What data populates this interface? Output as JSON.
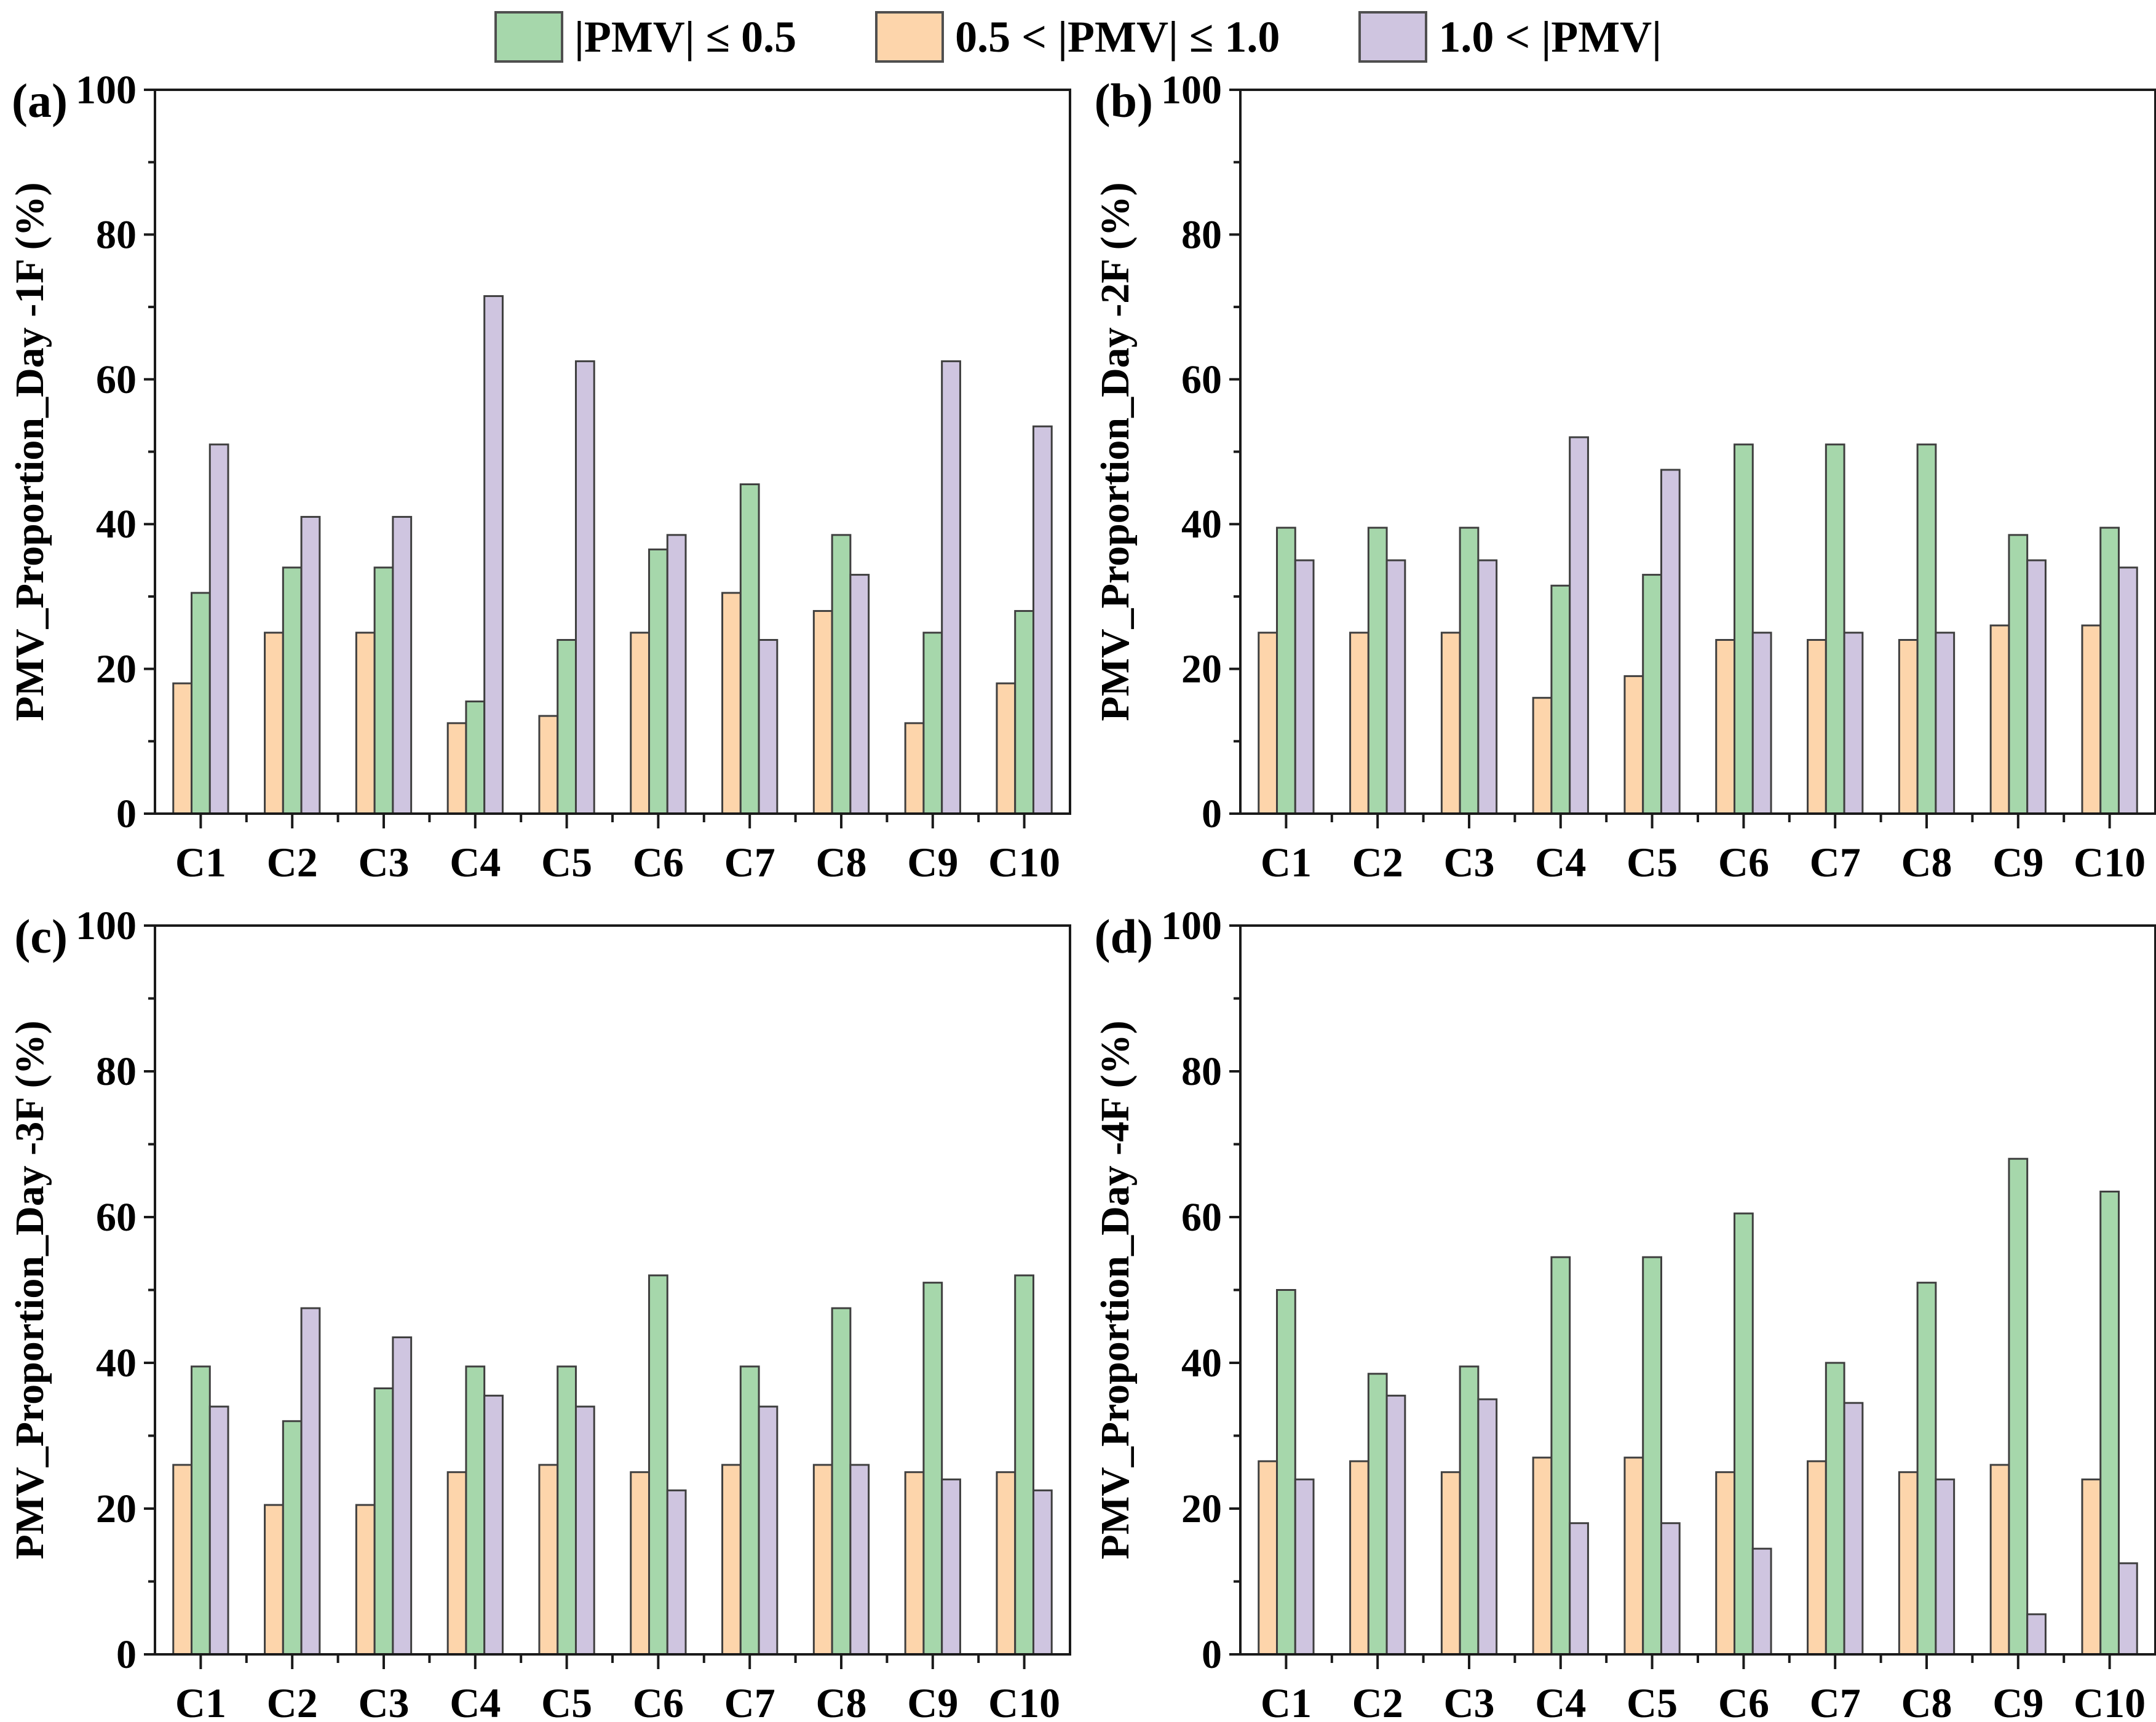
{
  "page": {
    "background": "#ffffff"
  },
  "legend": {
    "items": [
      {
        "label": "|PMV| ≤ 0.5",
        "color": "#a6d7ab"
      },
      {
        "label": "0.5 < |PMV| ≤ 1.0",
        "color": "#fdd5ab"
      },
      {
        "label": "1.0 < |PMV|",
        "color": "#cfc5e0"
      }
    ],
    "position": "top-center-shared"
  },
  "chart_data": [
    {
      "type": "bar",
      "panel_label": "(a)",
      "ylabel": "PMV_Proportion_Day -1F (%)",
      "categories": [
        "C1",
        "C2",
        "C3",
        "C4",
        "C5",
        "C6",
        "C7",
        "C8",
        "C9",
        "C10"
      ],
      "ylim": [
        0,
        100
      ],
      "yticks_major": [
        0,
        20,
        40,
        60,
        80,
        100
      ],
      "ytick_minor_step": 10,
      "grid": false,
      "series": [
        {
          "name": "0.5 < |PMV| ≤ 1.0",
          "color": "#fdd5ab",
          "values": [
            18,
            25,
            25,
            12.5,
            13.5,
            25,
            30.5,
            28,
            12.5,
            18
          ]
        },
        {
          "name": "|PMV| ≤ 0.5",
          "color": "#a6d7ab",
          "values": [
            30.5,
            34,
            34,
            15.5,
            24,
            36.5,
            45.5,
            38.5,
            25,
            28
          ]
        },
        {
          "name": "1.0 < |PMV|",
          "color": "#cfc5e0",
          "values": [
            51,
            41,
            41,
            71.5,
            62.5,
            38.5,
            24,
            33,
            62.5,
            53.5
          ]
        }
      ]
    },
    {
      "type": "bar",
      "panel_label": "(b)",
      "ylabel": "PMV_Proportion_Day -2F (%)",
      "categories": [
        "C1",
        "C2",
        "C3",
        "C4",
        "C5",
        "C6",
        "C7",
        "C8",
        "C9",
        "C10"
      ],
      "ylim": [
        0,
        100
      ],
      "yticks_major": [
        0,
        20,
        40,
        60,
        80,
        100
      ],
      "ytick_minor_step": 10,
      "grid": false,
      "series": [
        {
          "name": "0.5 < |PMV| ≤ 1.0",
          "color": "#fdd5ab",
          "values": [
            25,
            25,
            25,
            16,
            19,
            24,
            24,
            24,
            26,
            26
          ]
        },
        {
          "name": "|PMV| ≤ 0.5",
          "color": "#a6d7ab",
          "values": [
            39.5,
            39.5,
            39.5,
            31.5,
            33,
            51,
            51,
            51,
            38.5,
            39.5
          ]
        },
        {
          "name": "1.0 < |PMV|",
          "color": "#cfc5e0",
          "values": [
            35,
            35,
            35,
            52,
            47.5,
            25,
            25,
            25,
            35,
            34
          ]
        }
      ]
    },
    {
      "type": "bar",
      "panel_label": "(c)",
      "ylabel": "PMV_Proportion_Day -3F (%)",
      "categories": [
        "C1",
        "C2",
        "C3",
        "C4",
        "C5",
        "C6",
        "C7",
        "C8",
        "C9",
        "C10"
      ],
      "ylim": [
        0,
        100
      ],
      "yticks_major": [
        0,
        20,
        40,
        60,
        80,
        100
      ],
      "ytick_minor_step": 10,
      "grid": false,
      "series": [
        {
          "name": "0.5 < |PMV| ≤ 1.0",
          "color": "#fdd5ab",
          "values": [
            26,
            20.5,
            20.5,
            25,
            26,
            25,
            26,
            26,
            25,
            25
          ]
        },
        {
          "name": "|PMV| ≤ 0.5",
          "color": "#a6d7ab",
          "values": [
            39.5,
            32,
            36.5,
            39.5,
            39.5,
            52,
            39.5,
            47.5,
            51,
            52
          ]
        },
        {
          "name": "1.0 < |PMV|",
          "color": "#cfc5e0",
          "values": [
            34,
            47.5,
            43.5,
            35.5,
            34,
            22.5,
            34,
            26,
            24,
            22.5
          ]
        }
      ]
    },
    {
      "type": "bar",
      "panel_label": "(d)",
      "ylabel": "PMV_Proportion_Day -4F (%)",
      "categories": [
        "C1",
        "C2",
        "C3",
        "C4",
        "C5",
        "C6",
        "C7",
        "C8",
        "C9",
        "C10"
      ],
      "ylim": [
        0,
        100
      ],
      "yticks_major": [
        0,
        20,
        40,
        60,
        80,
        100
      ],
      "ytick_minor_step": 10,
      "grid": false,
      "series": [
        {
          "name": "0.5 < |PMV| ≤ 1.0",
          "color": "#fdd5ab",
          "values": [
            26.5,
            26.5,
            25,
            27,
            27,
            25,
            26.5,
            25,
            26,
            24
          ]
        },
        {
          "name": "|PMV| ≤ 0.5",
          "color": "#a6d7ab",
          "values": [
            50,
            38.5,
            39.5,
            54.5,
            54.5,
            60.5,
            40,
            51,
            68,
            63.5
          ]
        },
        {
          "name": "1.0 < |PMV|",
          "color": "#cfc5e0",
          "values": [
            24,
            35.5,
            35,
            18,
            18,
            14.5,
            34.5,
            24,
            5.5,
            12.5
          ]
        }
      ]
    }
  ]
}
